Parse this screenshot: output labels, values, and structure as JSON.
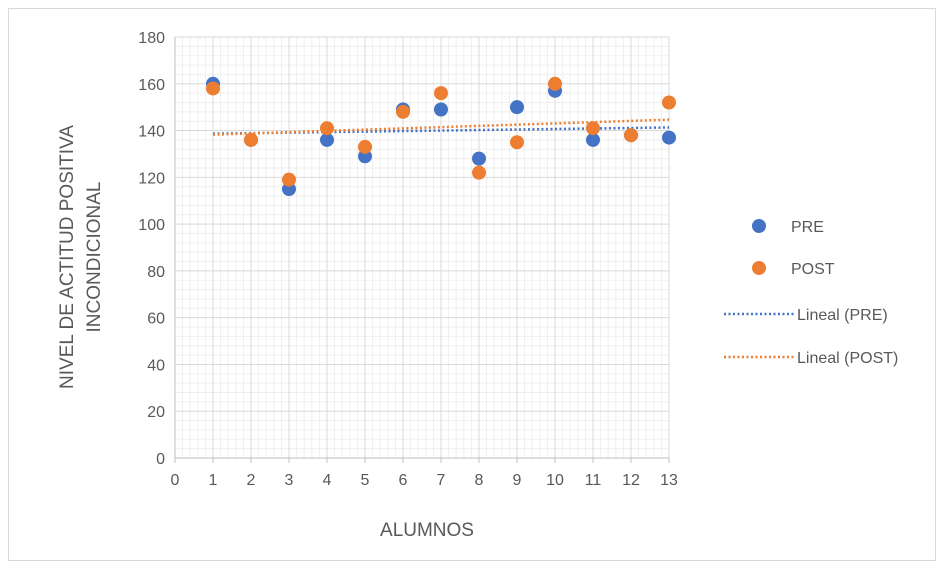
{
  "chart_data": {
    "type": "scatter",
    "title": "",
    "xlabel": "ALUMNOS",
    "ylabel_lines": [
      "NIVEL DE ACTITUD POSITIVA",
      "INCONDICIONAL"
    ],
    "xlim": [
      0,
      13
    ],
    "ylim": [
      0,
      180
    ],
    "x_ticks": [
      0,
      1,
      2,
      3,
      4,
      5,
      6,
      7,
      8,
      9,
      10,
      11,
      12,
      13
    ],
    "y_ticks": [
      0,
      20,
      40,
      60,
      80,
      100,
      120,
      140,
      160,
      180
    ],
    "x_tick_labels": [
      "0",
      "1",
      "2",
      "3",
      "4",
      "5",
      "6",
      "7",
      "8",
      "9",
      "10",
      "11",
      "12",
      "13"
    ],
    "y_tick_labels": [
      "0",
      "20",
      "40",
      "60",
      "80",
      "100",
      "120",
      "140",
      "160",
      "180"
    ],
    "grid": "major and minor",
    "legend_position": "right",
    "series": [
      {
        "name": "PRE",
        "color": "#4472c4",
        "x": [
          1,
          2,
          3,
          4,
          5,
          6,
          7,
          8,
          9,
          10,
          11,
          12,
          13
        ],
        "y": [
          160,
          136,
          115,
          136,
          129,
          149,
          149,
          128,
          150,
          157,
          136,
          138,
          137
        ]
      },
      {
        "name": "POST",
        "color": "#ed7d31",
        "x": [
          1,
          2,
          3,
          4,
          5,
          6,
          7,
          8,
          9,
          10,
          11,
          12,
          13
        ],
        "y": [
          158,
          136,
          119,
          141,
          133,
          148,
          156,
          122,
          135,
          160,
          141,
          138,
          152
        ]
      }
    ],
    "trendlines": [
      {
        "name": "Lineal (PRE)",
        "type": "linear",
        "of": "PRE",
        "color": "#4472c4"
      },
      {
        "name": "Lineal (POST)",
        "type": "linear",
        "of": "POST",
        "color": "#ed7d31"
      }
    ]
  }
}
